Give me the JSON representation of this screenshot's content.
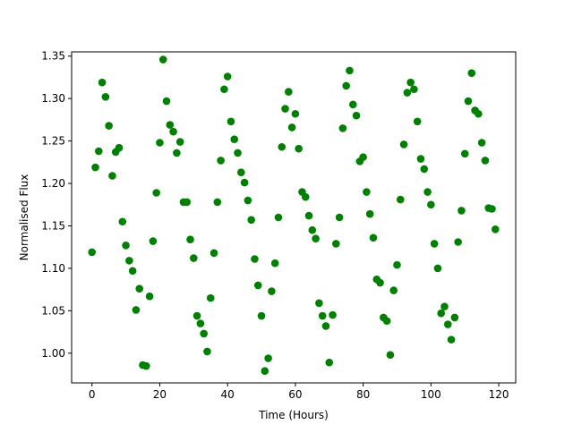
{
  "chart_data": {
    "type": "scatter",
    "title": "",
    "xlabel": "Time (Hours)",
    "ylabel": "Normalised Flux",
    "xlim": [
      -6,
      125
    ],
    "ylim": [
      0.965,
      1.355
    ],
    "x_ticks": [
      0,
      20,
      40,
      60,
      80,
      100,
      120
    ],
    "y_ticks": [
      1.0,
      1.05,
      1.1,
      1.15,
      1.2,
      1.25,
      1.3,
      1.35
    ],
    "y_tick_labels": [
      "1.00",
      "1.05",
      "1.10",
      "1.15",
      "1.20",
      "1.25",
      "1.30",
      "1.35"
    ],
    "marker_color": "#008000",
    "grid": false,
    "series": [
      {
        "x": [
          0,
          1,
          2,
          3,
          4,
          5,
          6,
          7,
          8,
          9,
          10,
          11,
          12,
          13,
          14,
          15,
          16,
          17,
          18,
          19,
          20,
          21,
          22,
          23,
          24,
          25,
          26,
          27,
          28,
          29,
          30,
          31,
          32,
          33,
          34,
          35,
          36,
          37,
          38,
          39,
          40,
          41,
          42,
          43,
          44,
          45,
          46,
          47,
          48,
          49,
          50,
          51,
          52,
          53,
          54,
          55,
          56,
          57,
          58,
          59,
          60,
          61,
          62,
          63,
          64,
          65,
          66,
          67,
          68,
          69,
          70,
          71,
          72,
          73,
          74,
          75,
          76,
          77,
          78,
          79,
          80,
          81,
          82,
          83,
          84,
          85,
          86,
          87,
          88,
          89,
          90,
          91,
          92,
          93,
          94,
          95,
          96,
          97,
          98,
          99,
          100,
          101,
          102,
          103,
          104,
          105,
          106,
          107,
          108,
          109,
          110,
          111,
          112,
          113,
          114,
          115,
          116,
          117,
          118,
          119
        ],
        "y": [
          1.119,
          1.219,
          1.238,
          1.319,
          1.302,
          1.268,
          1.209,
          1.237,
          1.242,
          1.155,
          1.127,
          1.109,
          1.097,
          1.051,
          1.076,
          0.986,
          0.985,
          1.067,
          1.132,
          1.189,
          1.248,
          1.346,
          1.297,
          1.269,
          1.261,
          1.236,
          1.249,
          1.178,
          1.178,
          1.134,
          1.112,
          1.044,
          1.035,
          1.023,
          1.002,
          1.065,
          1.118,
          1.178,
          1.227,
          1.311,
          1.326,
          1.273,
          1.252,
          1.236,
          1.213,
          1.201,
          1.18,
          1.157,
          1.111,
          1.08,
          1.044,
          0.979,
          0.994,
          1.073,
          1.106,
          1.16,
          1.243,
          1.288,
          1.308,
          1.266,
          1.282,
          1.241,
          1.19,
          1.184,
          1.162,
          1.145,
          1.135,
          1.059,
          1.044,
          1.032,
          0.989,
          1.045,
          1.129,
          1.16,
          1.265,
          1.315,
          1.333,
          1.293,
          1.28,
          1.226,
          1.231,
          1.19,
          1.164,
          1.136,
          1.087,
          1.083,
          1.042,
          1.038,
          0.998,
          1.074,
          1.104,
          1.181,
          1.246,
          1.307,
          1.319,
          1.311,
          1.273,
          1.229,
          1.217,
          1.19,
          1.175,
          1.129,
          1.1,
          1.047,
          1.055,
          1.034,
          1.016,
          1.042,
          1.131,
          1.168,
          1.235,
          1.297,
          1.33,
          1.286,
          1.282,
          1.248,
          1.227,
          1.171,
          1.17,
          1.146
        ]
      }
    ]
  }
}
